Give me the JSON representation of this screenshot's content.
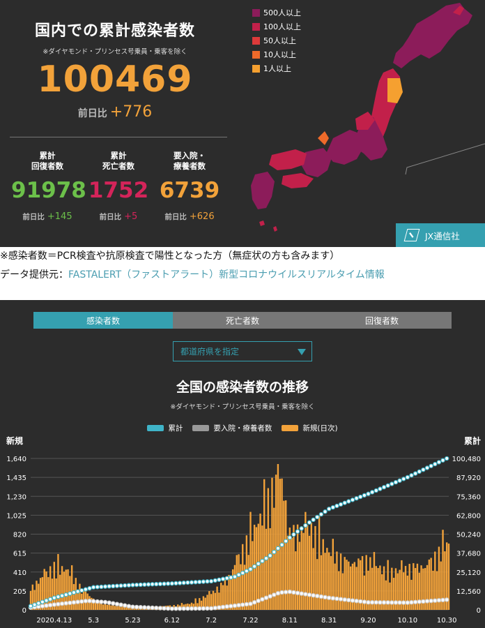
{
  "summary": {
    "title": "国内での累計感染者数",
    "note": "※ダイヤモンド・プリンセス号乗員・乗客を除く",
    "total": "100469",
    "diff_label": "前日比",
    "diff_value": "+776",
    "stats": [
      {
        "label": "累計\n回復者数",
        "value": "91978",
        "diff_label": "前日比",
        "diff": "+145",
        "color": "#6cc04a"
      },
      {
        "label": "累計\n死亡者数",
        "value": "1752",
        "diff_label": "前日比",
        "diff": "+5",
        "color": "#d4245a"
      },
      {
        "label": "要入院・\n療養者数",
        "value": "6739",
        "diff_label": "前日比",
        "diff": "+626",
        "color": "#f2a23a"
      }
    ]
  },
  "map_legend": [
    {
      "label": "500人以上",
      "color": "#8c1c5a"
    },
    {
      "label": "100人以上",
      "color": "#c2204a"
    },
    {
      "label": "50人以上",
      "color": "#dd3a3a"
    },
    {
      "label": "10人以上",
      "color": "#ee6a2a"
    },
    {
      "label": "1人以上",
      "color": "#f5a030"
    }
  ],
  "brand": "JX通信社",
  "notes": {
    "line1": "※感染者数＝PCR検査や抗原検査で陽性となった方（無症状の方も含みます）",
    "line2_prefix": "データ提供元：",
    "line2_source": "FASTALERT（ファストアラート）新型コロナウイルスリアルタイム情報"
  },
  "tabs": [
    {
      "label": "感染者数",
      "active": true
    },
    {
      "label": "死亡者数",
      "active": false
    },
    {
      "label": "回復者数",
      "active": false
    }
  ],
  "select": {
    "label": "都道府県を指定",
    "icon": "triangle-down-icon"
  },
  "chart_header": {
    "title": "全国の感染者数の推移",
    "note": "※ダイヤモンド・プリンセス号乗員・乗客を除く",
    "left_axis_label": "新規",
    "right_axis_label": "累計"
  },
  "chart_data": {
    "type": "bar",
    "series": [
      {
        "name": "累計",
        "kind": "line",
        "axis": "right",
        "color": "#3fb4c8",
        "x": [
          "2020-04-01",
          "2020-04-13",
          "2020-05-03",
          "2020-05-23",
          "2020-06-12",
          "2020-07-02",
          "2020-07-14",
          "2020-07-22",
          "2020-08-01",
          "2020-08-11",
          "2020-08-21",
          "2020-08-31",
          "2020-09-20",
          "2020-10-10",
          "2020-10-30"
        ],
        "values": [
          2500,
          8000,
          15000,
          16500,
          17500,
          19000,
          22000,
          27000,
          36000,
          48000,
          58000,
          67000,
          77000,
          88000,
          100469
        ]
      },
      {
        "name": "要入院・療養者数",
        "kind": "line",
        "axis": "right",
        "color": "#cccccc",
        "x": [
          "2020-04-01",
          "2020-04-13",
          "2020-04-30",
          "2020-05-10",
          "2020-05-23",
          "2020-06-12",
          "2020-07-02",
          "2020-07-22",
          "2020-08-06",
          "2020-08-11",
          "2020-08-31",
          "2020-09-20",
          "2020-10-10",
          "2020-10-30"
        ],
        "values": [
          1500,
          3500,
          6000,
          5000,
          2000,
          800,
          1000,
          4000,
          11500,
          12000,
          8000,
          5000,
          4800,
          6739
        ]
      },
      {
        "name": "新規(日次)",
        "kind": "bar",
        "axis": "left",
        "color": "#f2a23a",
        "x": [
          "2020-04-01",
          "2020-04-07",
          "2020-04-13",
          "2020-04-20",
          "2020-04-27",
          "2020-05-03",
          "2020-05-13",
          "2020-05-23",
          "2020-06-02",
          "2020-06-12",
          "2020-06-22",
          "2020-07-02",
          "2020-07-10",
          "2020-07-22",
          "2020-07-29",
          "2020-08-03",
          "2020-08-07",
          "2020-08-11",
          "2020-08-21",
          "2020-08-31",
          "2020-09-10",
          "2020-09-20",
          "2020-09-30",
          "2020-10-10",
          "2020-10-20",
          "2020-10-30"
        ],
        "values": [
          250,
          400,
          520,
          480,
          250,
          130,
          50,
          30,
          40,
          50,
          80,
          200,
          350,
          900,
          1200,
          1500,
          1580,
          900,
          1000,
          700,
          550,
          600,
          450,
          500,
          520,
          800
        ]
      }
    ],
    "left_ticks": [
      "0",
      "205",
      "410",
      "615",
      "820",
      "1,025",
      "1,230",
      "1,435",
      "1,640"
    ],
    "right_ticks": [
      "0",
      "12,560",
      "25,120",
      "37,680",
      "50,240",
      "62,800",
      "75,360",
      "87,920",
      "100,480"
    ],
    "left_range": [
      0,
      1640
    ],
    "right_range": [
      0,
      100480
    ],
    "x_ticks": [
      "2020.4.13",
      "5.3",
      "5.23",
      "6.12",
      "7.2",
      "7.22",
      "8.11",
      "8.31",
      "9.20",
      "10.10",
      "10.30"
    ],
    "grid": true,
    "legend": "top"
  }
}
